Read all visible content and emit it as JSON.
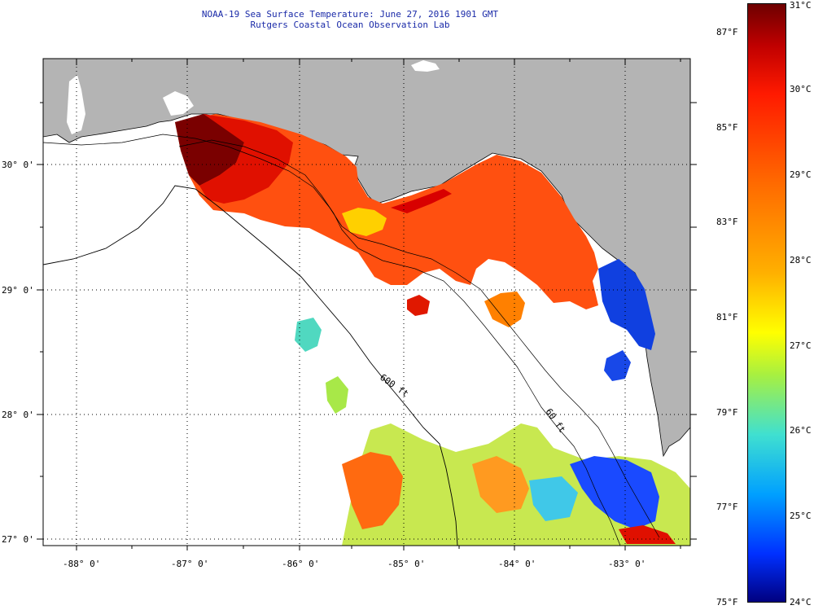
{
  "title": {
    "line1": "NOAA-19 Sea Surface Temperature:  June 27, 2016 1901 GMT",
    "line2": "Rutgers Coastal Ocean Observation Lab"
  },
  "map": {
    "lon_labels": [
      "-88° 0'",
      "-87° 0'",
      "-86° 0'",
      "-85° 0'",
      "-84° 0'",
      "-83° 0'"
    ],
    "lat_labels": [
      "30° 0'",
      "29° 0'",
      "28° 0'",
      "27° 0'"
    ],
    "contour_label": "600 ft",
    "contour_label2": "60 ft",
    "colors": {
      "land": "#b4b4b4",
      "no_data": "#ffffff",
      "frame": "#000000"
    }
  },
  "colorbar": {
    "fahrenheit": [
      "87°F",
      "85°F",
      "83°F",
      "81°F",
      "79°F",
      "77°F",
      "75°F"
    ],
    "celsius": [
      "31°C",
      "30°C",
      "29°C",
      "28°C",
      "27°C",
      "26°C",
      "25°C",
      "24°C"
    ]
  }
}
